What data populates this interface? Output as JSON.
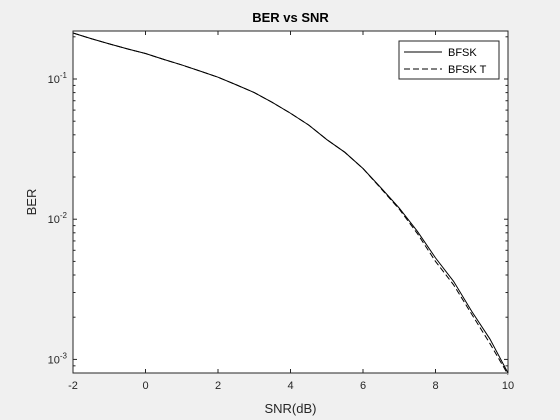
{
  "chart_data": {
    "type": "line",
    "title": "BER vs SNR",
    "xlabel": "SNR(dB)",
    "ylabel": "BER",
    "xlim": [
      -2,
      10
    ],
    "ylim": [
      0.0008,
      0.22
    ],
    "yscale": "log",
    "grid": false,
    "legend_position": "top-right",
    "x_ticks": [
      -2,
      0,
      2,
      4,
      6,
      8,
      10
    ],
    "y_ticks": [
      {
        "value": 0.1,
        "base": "10",
        "exp": "-1"
      },
      {
        "value": 0.01,
        "base": "10",
        "exp": "-2"
      },
      {
        "value": 0.001,
        "base": "10",
        "exp": "-3"
      }
    ],
    "series": [
      {
        "name": "BFSK",
        "style": "solid",
        "color": "#000000",
        "x": [
          -2,
          -1.5,
          -1,
          -0.5,
          0,
          0.5,
          1,
          1.5,
          2,
          2.5,
          3,
          3.5,
          4,
          4.5,
          5,
          5.5,
          6,
          6.5,
          7,
          7.5,
          8,
          8.5,
          9,
          9.5,
          10
        ],
        "y": [
          0.213,
          0.194,
          0.178,
          0.164,
          0.152,
          0.138,
          0.126,
          0.114,
          0.103,
          0.091,
          0.08,
          0.068,
          0.057,
          0.047,
          0.037,
          0.03,
          0.023,
          0.0167,
          0.012,
          0.0082,
          0.0053,
          0.0036,
          0.0022,
          0.0014,
          0.0008
        ]
      },
      {
        "name": "BFSK T",
        "style": "dashed",
        "color": "#000000",
        "x": [
          -2,
          -1.5,
          -1,
          -0.5,
          0,
          0.5,
          1,
          1.5,
          2,
          2.5,
          3,
          3.5,
          4,
          4.5,
          5,
          5.5,
          6,
          6.5,
          7,
          7.5,
          8,
          8.5,
          9,
          9.5,
          10
        ],
        "y": [
          0.213,
          0.194,
          0.178,
          0.164,
          0.152,
          0.138,
          0.126,
          0.114,
          0.103,
          0.091,
          0.08,
          0.068,
          0.057,
          0.047,
          0.037,
          0.03,
          0.023,
          0.0165,
          0.0118,
          0.0079,
          0.005,
          0.0034,
          0.0021,
          0.0013,
          0.00078
        ]
      }
    ]
  }
}
